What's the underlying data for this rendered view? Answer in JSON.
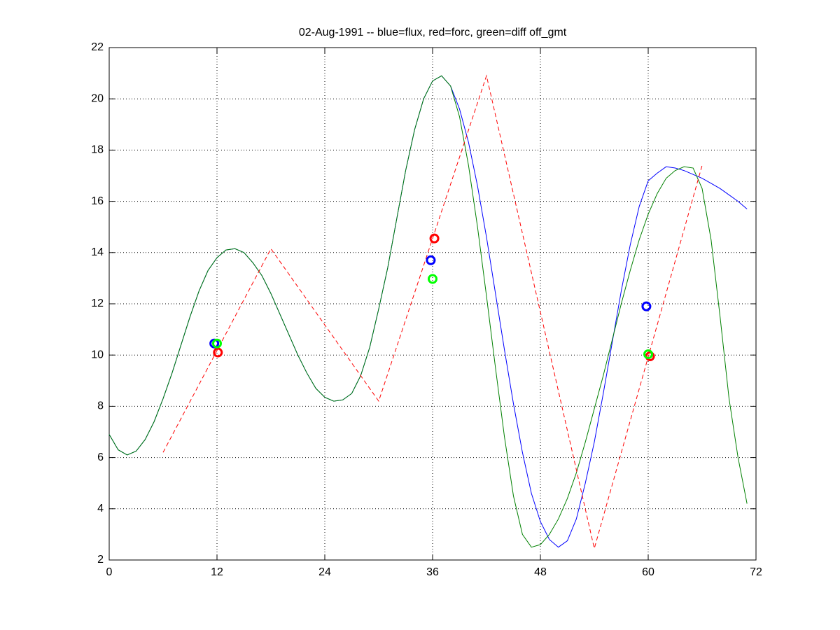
{
  "chart_data": {
    "type": "line",
    "title": "02-Aug-1991 -- blue=flux, red=forc, green=diff off_gmt",
    "xlim": [
      0,
      72
    ],
    "xticks": [
      0,
      12,
      24,
      36,
      48,
      60,
      72
    ],
    "ylim": [
      2,
      22
    ],
    "yticks": [
      2,
      4,
      6,
      8,
      10,
      12,
      14,
      16,
      18,
      20,
      22
    ],
    "grid": true,
    "series": [
      {
        "color": "#0000ff",
        "style": "solid",
        "x": [
          0,
          1,
          2,
          3,
          4,
          5,
          6,
          7,
          8,
          9,
          10,
          11,
          12,
          13,
          14,
          15,
          16,
          17,
          18,
          19,
          20,
          21,
          22,
          23,
          24,
          25,
          26,
          27,
          28,
          29,
          30,
          31,
          32,
          33,
          34,
          35,
          36,
          37,
          38,
          39,
          40,
          41,
          42,
          43,
          44,
          45,
          46,
          47,
          48,
          49,
          50,
          51,
          52,
          53,
          54,
          55,
          56,
          57,
          58,
          59,
          60,
          61,
          62,
          63,
          64,
          65,
          66,
          67,
          68,
          69,
          70,
          71
        ],
        "values": [
          6.9,
          6.3,
          6.1,
          6.25,
          6.7,
          7.4,
          8.3,
          9.3,
          10.4,
          11.5,
          12.5,
          13.3,
          13.8,
          14.1,
          14.15,
          14.0,
          13.6,
          13.1,
          12.4,
          11.6,
          10.8,
          10.0,
          9.3,
          8.7,
          8.35,
          8.2,
          8.25,
          8.5,
          9.2,
          10.3,
          11.8,
          13.4,
          15.3,
          17.2,
          18.8,
          20.0,
          20.7,
          20.9,
          20.5,
          19.6,
          18.3,
          16.6,
          14.6,
          12.4,
          10.2,
          8.1,
          6.2,
          4.6,
          3.5,
          2.8,
          2.5,
          2.75,
          3.6,
          5.0,
          6.6,
          8.5,
          10.5,
          12.5,
          14.3,
          15.8,
          16.8,
          17.1,
          17.35,
          17.3,
          17.2,
          17.05,
          16.9,
          16.7,
          16.5,
          16.25,
          16.0,
          15.7
        ]
      },
      {
        "color": "#008000",
        "style": "solid",
        "x": [
          0,
          1,
          2,
          3,
          4,
          5,
          6,
          7,
          8,
          9,
          10,
          11,
          12,
          13,
          14,
          15,
          16,
          17,
          18,
          19,
          20,
          21,
          22,
          23,
          24,
          25,
          26,
          27,
          28,
          29,
          30,
          31,
          32,
          33,
          34,
          35,
          36,
          37,
          38,
          39,
          40,
          41,
          42,
          43,
          44,
          45,
          46,
          47,
          48,
          49,
          50,
          51,
          52,
          53,
          54,
          55,
          56,
          57,
          58,
          59,
          60,
          61,
          62,
          63,
          64,
          65,
          66,
          67,
          68,
          69,
          70,
          71
        ],
        "values": [
          6.9,
          6.3,
          6.1,
          6.25,
          6.7,
          7.4,
          8.3,
          9.3,
          10.4,
          11.5,
          12.5,
          13.3,
          13.8,
          14.1,
          14.15,
          14.0,
          13.6,
          13.1,
          12.4,
          11.6,
          10.8,
          10.0,
          9.3,
          8.7,
          8.35,
          8.2,
          8.25,
          8.5,
          9.2,
          10.3,
          11.8,
          13.4,
          15.3,
          17.2,
          18.8,
          20.0,
          20.7,
          20.9,
          20.5,
          19.3,
          17.4,
          15.0,
          12.3,
          9.5,
          6.8,
          4.5,
          3.0,
          2.5,
          2.6,
          3.0,
          3.6,
          4.4,
          5.4,
          6.6,
          7.9,
          9.2,
          10.6,
          12.0,
          13.3,
          14.5,
          15.5,
          16.3,
          16.9,
          17.2,
          17.35,
          17.3,
          16.5,
          14.5,
          11.5,
          8.3,
          6.0,
          4.2
        ]
      },
      {
        "color": "#ff0000",
        "style": "dashed",
        "x": [
          6,
          18,
          30,
          42,
          54,
          66
        ],
        "values": [
          6.2,
          14.15,
          8.2,
          20.9,
          2.45,
          17.4
        ]
      },
      {
        "color": "#0000ff",
        "style": "markers",
        "x": [
          11.7,
          35.8,
          59.8
        ],
        "values": [
          10.45,
          13.7,
          11.9
        ]
      },
      {
        "color": "#ff0000",
        "style": "markers",
        "x": [
          12.1,
          36.2,
          60.2
        ],
        "values": [
          10.1,
          14.55,
          9.95
        ]
      },
      {
        "color": "#00ff00",
        "style": "markers",
        "x": [
          12.0,
          36.0,
          60.0
        ],
        "values": [
          10.45,
          12.97,
          10.03
        ]
      }
    ]
  }
}
